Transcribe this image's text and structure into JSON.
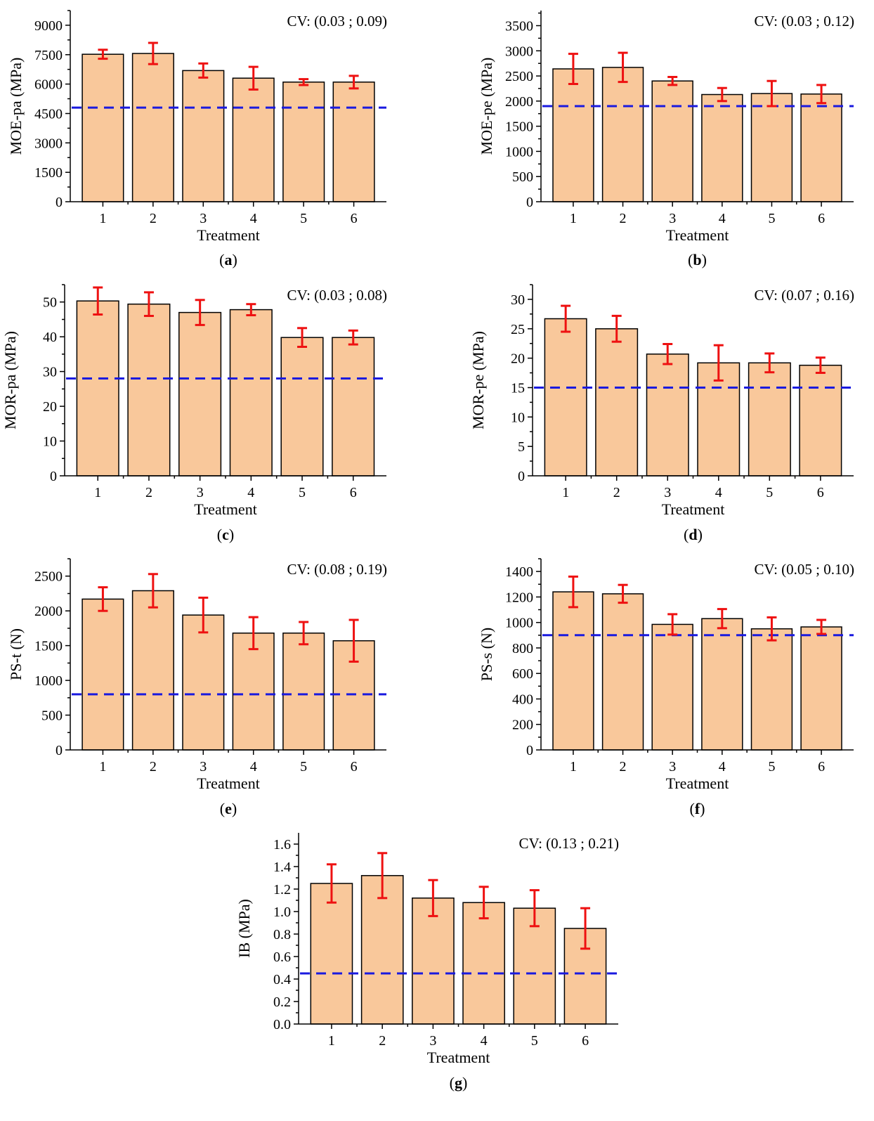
{
  "colors": {
    "bar_fill": "#f9c89b",
    "bar_stroke": "#000000",
    "error_bar": "#ee1111",
    "reference_line": "#1a1adf"
  },
  "chart_data": [
    {
      "id": "a",
      "panel_label_prefix": "(",
      "panel_label_letter": "a",
      "panel_label_suffix": ")",
      "type": "bar",
      "categories": [
        "1",
        "2",
        "3",
        "4",
        "5",
        "6"
      ],
      "values": [
        7520,
        7560,
        6690,
        6300,
        6100,
        6100
      ],
      "errors": [
        230,
        540,
        360,
        580,
        150,
        320
      ],
      "reference_line": 4800,
      "cv_text": "CV: (0.03 ; 0.09)",
      "xlabel": "Treatment",
      "ylabel": "MOE-pa (MPa)",
      "ylim": [
        0,
        9750
      ],
      "yticks": [
        0,
        1500,
        3000,
        4500,
        6000,
        7500,
        9000
      ],
      "ytick_labels": [
        "0",
        "1500",
        "3000",
        "4500",
        "6000",
        "7500",
        "9000"
      ]
    },
    {
      "id": "b",
      "panel_label_prefix": "(",
      "panel_label_letter": "b",
      "panel_label_suffix": ")",
      "type": "bar",
      "categories": [
        "1",
        "2",
        "3",
        "4",
        "5",
        "6"
      ],
      "values": [
        2640,
        2670,
        2400,
        2130,
        2150,
        2140
      ],
      "errors": [
        300,
        290,
        80,
        130,
        250,
        180
      ],
      "reference_line": 1900,
      "cv_text": "CV: (0.03 ; 0.12)",
      "xlabel": "Treatment",
      "ylabel": "MOE-pe (MPa)",
      "ylim": [
        0,
        3800
      ],
      "yticks": [
        0,
        500,
        1000,
        1500,
        2000,
        2500,
        3000,
        3500
      ],
      "ytick_labels": [
        "0",
        "500",
        "1000",
        "1500",
        "2000",
        "2500",
        "3000",
        "3500"
      ]
    },
    {
      "id": "c",
      "panel_label_prefix": "(",
      "panel_label_letter": "c",
      "panel_label_suffix": ")",
      "type": "bar",
      "categories": [
        "1",
        "2",
        "3",
        "4",
        "5",
        "6"
      ],
      "values": [
        50.3,
        49.4,
        47.0,
        47.8,
        39.8,
        39.8
      ],
      "errors": [
        3.9,
        3.4,
        3.6,
        1.6,
        2.7,
        2.0
      ],
      "reference_line": 28,
      "cv_text": "CV: (0.03 ; 0.08)",
      "xlabel": "Treatment",
      "ylabel": "MOR-pa (MPa)",
      "ylim": [
        0,
        55
      ],
      "yticks": [
        0,
        10,
        20,
        30,
        40,
        50
      ],
      "ytick_labels": [
        "0",
        "10",
        "20",
        "30",
        "40",
        "50"
      ]
    },
    {
      "id": "d",
      "panel_label_prefix": "(",
      "panel_label_letter": "d",
      "panel_label_suffix": ")",
      "type": "bar",
      "categories": [
        "1",
        "2",
        "3",
        "4",
        "5",
        "6"
      ],
      "values": [
        26.7,
        25.0,
        20.7,
        19.2,
        19.2,
        18.8
      ],
      "errors": [
        2.2,
        2.2,
        1.7,
        3.0,
        1.6,
        1.3
      ],
      "reference_line": 15,
      "cv_text": "CV: (0.07 ; 0.16)",
      "xlabel": "Treatment",
      "ylabel": "MOR-pe (MPa)",
      "ylim": [
        0,
        32.5
      ],
      "yticks": [
        0,
        5,
        10,
        15,
        20,
        25,
        30
      ],
      "ytick_labels": [
        "0",
        "5",
        "10",
        "15",
        "20",
        "25",
        "30"
      ]
    },
    {
      "id": "e",
      "panel_label_prefix": "(",
      "panel_label_letter": "e",
      "panel_label_suffix": ")",
      "type": "bar",
      "categories": [
        "1",
        "2",
        "3",
        "4",
        "5",
        "6"
      ],
      "values": [
        2170,
        2290,
        1940,
        1680,
        1680,
        1570
      ],
      "errors": [
        170,
        240,
        250,
        230,
        160,
        300
      ],
      "reference_line": 800,
      "cv_text": "CV: (0.08 ; 0.19)",
      "xlabel": "Treatment",
      "ylabel": "PS-t (N)",
      "ylim": [
        0,
        2750
      ],
      "yticks": [
        0,
        500,
        1000,
        1500,
        2000,
        2500
      ],
      "ytick_labels": [
        "0",
        "500",
        "1000",
        "1500",
        "2000",
        "2500"
      ]
    },
    {
      "id": "f",
      "panel_label_prefix": "(",
      "panel_label_letter": "f",
      "panel_label_suffix": ")",
      "type": "bar",
      "categories": [
        "1",
        "2",
        "3",
        "4",
        "5",
        "6"
      ],
      "values": [
        1240,
        1225,
        985,
        1030,
        950,
        965
      ],
      "errors": [
        120,
        70,
        80,
        75,
        90,
        55
      ],
      "reference_line": 900,
      "cv_text": "CV: (0.05 ; 0.10)",
      "xlabel": "Treatment",
      "ylabel": "PS-s (N)",
      "ylim": [
        0,
        1500
      ],
      "yticks": [
        0,
        200,
        400,
        600,
        800,
        1000,
        1200,
        1400
      ],
      "ytick_labels": [
        "0",
        "200",
        "400",
        "600",
        "800",
        "1000",
        "1200",
        "1400"
      ]
    },
    {
      "id": "g",
      "panel_label_prefix": "(",
      "panel_label_letter": "g",
      "panel_label_suffix": ")",
      "type": "bar",
      "categories": [
        "1",
        "2",
        "3",
        "4",
        "5",
        "6"
      ],
      "values": [
        1.25,
        1.32,
        1.12,
        1.08,
        1.03,
        0.85
      ],
      "errors": [
        0.17,
        0.2,
        0.16,
        0.14,
        0.16,
        0.18
      ],
      "reference_line": 0.45,
      "cv_text": "CV: (0.13 ; 0.21)",
      "xlabel": "Treatment",
      "ylabel": "IB (MPa)",
      "ylim": [
        0,
        1.7
      ],
      "yticks": [
        0,
        0.2,
        0.4,
        0.6,
        0.8,
        1.0,
        1.2,
        1.4,
        1.6
      ],
      "ytick_labels": [
        "0.0",
        "0.2",
        "0.4",
        "0.6",
        "0.8",
        "1.0",
        "1.2",
        "1.4",
        "1.6"
      ]
    }
  ]
}
